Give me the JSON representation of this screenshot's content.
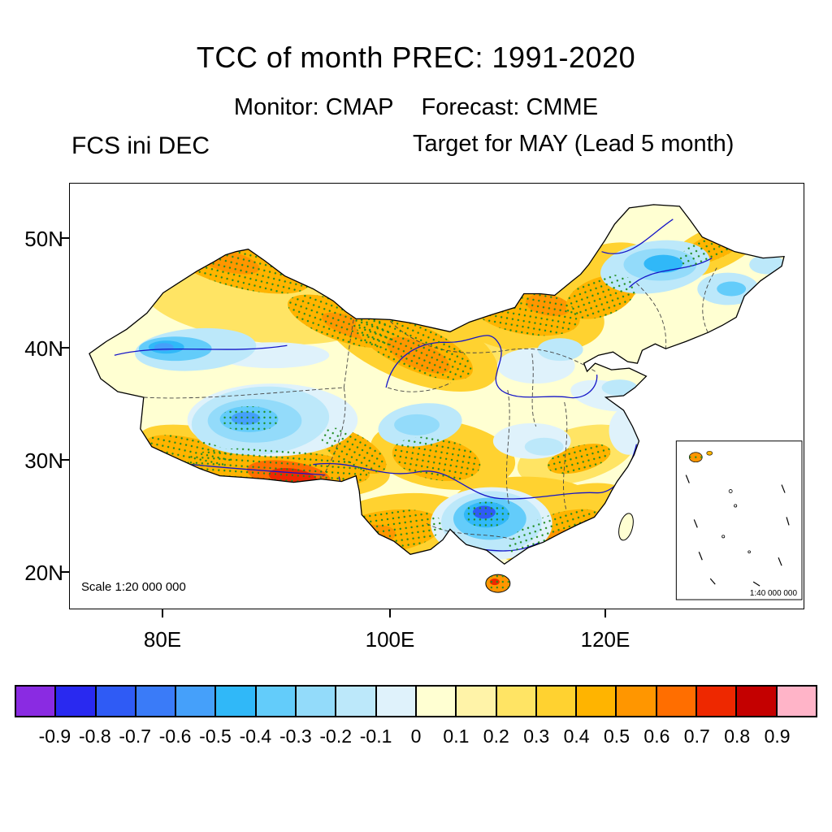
{
  "title": "TCC of month PREC: 1991-2020",
  "header": {
    "monitor": "Monitor: CMAP",
    "forecast": "Forecast: CMME",
    "init_label": "FCS ini DEC",
    "target_label": "Target for MAY (Lead 5 month)"
  },
  "map": {
    "lat_ticks": [
      "50N",
      "40N",
      "30N",
      "20N"
    ],
    "lon_ticks": [
      "80E",
      "100E",
      "120E"
    ],
    "scale_label": "Scale 1:20 000 000",
    "inset_scale_label": "1:40 000 000"
  },
  "colorbar": {
    "labels": [
      "-0.9",
      "-0.8",
      "-0.7",
      "-0.6",
      "-0.5",
      "-0.4",
      "-0.3",
      "-0.2",
      "-0.1",
      "0",
      "0.1",
      "0.2",
      "0.3",
      "0.4",
      "0.5",
      "0.6",
      "0.7",
      "0.8",
      "0.9"
    ],
    "colors": [
      "#8A2BE2",
      "#2929F0",
      "#2F5BF5",
      "#3A7BF8",
      "#45A0FA",
      "#30B8F8",
      "#63CCFA",
      "#93DBFA",
      "#BCE8FA",
      "#DFF2FB",
      "#FFFFD2",
      "#FFF3A8",
      "#FFE464",
      "#FFD230",
      "#FFB400",
      "#FF9600",
      "#FF6E00",
      "#EE2800",
      "#C40000",
      "#FFB4C8"
    ],
    "dot_color": "#1E8C1E"
  }
}
